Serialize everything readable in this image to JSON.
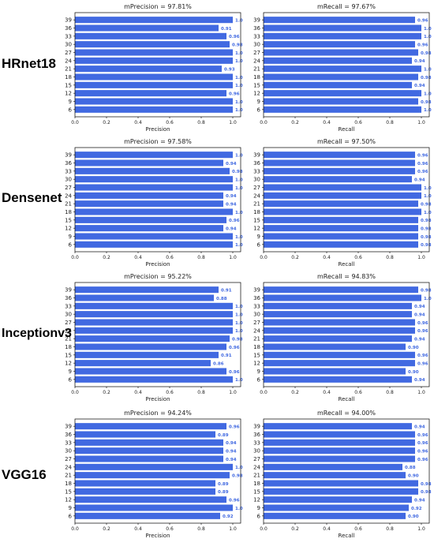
{
  "rows": [
    {
      "model": "HRnet18",
      "charts": [
        {
          "type": "bar",
          "orientation": "horizontal",
          "title": "mPrecision = 97.81%",
          "xlabel": "Precision",
          "xlim": [
            0,
            1.0
          ],
          "x_ticks": [
            "0.0",
            "0.2",
            "0.4",
            "0.6",
            "0.8",
            "1.0"
          ],
          "categories": [
            "39",
            "36",
            "33",
            "30",
            "27",
            "24",
            "21",
            "18",
            "15",
            "12",
            "9",
            "6"
          ],
          "values": [
            1.0,
            0.91,
            0.96,
            0.98,
            1.0,
            1.0,
            0.93,
            1.0,
            1.0,
            0.96,
            1.0,
            1.0
          ],
          "value_labels": [
            "1.0",
            "0.91",
            "0.96",
            "0.98",
            "1.0",
            "1.0",
            "0.93",
            "1.0",
            "1.0",
            "0.96",
            "1.0",
            "1.0"
          ]
        },
        {
          "type": "bar",
          "orientation": "horizontal",
          "title": "mRecall = 97.67%",
          "xlabel": "Recall",
          "xlim": [
            0,
            1.0
          ],
          "x_ticks": [
            "0.0",
            "0.2",
            "0.4",
            "0.6",
            "0.8",
            "1.0"
          ],
          "categories": [
            "39",
            "36",
            "33",
            "30",
            "27",
            "24",
            "21",
            "18",
            "15",
            "12",
            "9",
            "6"
          ],
          "values": [
            0.96,
            1.0,
            1.0,
            0.96,
            0.98,
            0.94,
            1.0,
            0.98,
            0.94,
            1.0,
            0.98,
            1.0
          ],
          "value_labels": [
            "0.96",
            "1.0",
            "1.0",
            "0.96",
            "0.98",
            "0.94",
            "1.0",
            "0.98",
            "0.94",
            "1.0",
            "0.98",
            "1.0"
          ]
        }
      ]
    },
    {
      "model": "Densenet",
      "charts": [
        {
          "type": "bar",
          "orientation": "horizontal",
          "title": "mPrecision = 97.58%",
          "xlabel": "Precision",
          "xlim": [
            0,
            1.0
          ],
          "x_ticks": [
            "0.0",
            "0.2",
            "0.4",
            "0.6",
            "0.8",
            "1.0"
          ],
          "categories": [
            "39",
            "36",
            "33",
            "30",
            "27",
            "24",
            "21",
            "18",
            "15",
            "12",
            "9",
            "6"
          ],
          "values": [
            1.0,
            0.94,
            0.98,
            1.0,
            1.0,
            0.94,
            0.94,
            1.0,
            0.96,
            0.94,
            1.0,
            1.0
          ],
          "value_labels": [
            "1.0",
            "0.94",
            "0.98",
            "1.0",
            "1.0",
            "0.94",
            "0.94",
            "1.0",
            "0.96",
            "0.94",
            "1.0",
            "1.0"
          ]
        },
        {
          "type": "bar",
          "orientation": "horizontal",
          "title": "mRecall = 97.50%",
          "xlabel": "Recall",
          "xlim": [
            0,
            1.0
          ],
          "x_ticks": [
            "0.0",
            "0.2",
            "0.4",
            "0.6",
            "0.8",
            "1.0"
          ],
          "categories": [
            "39",
            "36",
            "33",
            "30",
            "27",
            "24",
            "21",
            "18",
            "15",
            "12",
            "9",
            "6"
          ],
          "values": [
            0.96,
            0.96,
            0.96,
            0.94,
            1.0,
            1.0,
            0.98,
            1.0,
            0.98,
            0.98,
            0.98,
            0.98
          ],
          "value_labels": [
            "0.96",
            "0.96",
            "0.96",
            "0.94",
            "1.0",
            "1.0",
            "0.98",
            "1.0",
            "0.98",
            "0.98",
            "0.98",
            "0.98"
          ]
        }
      ]
    },
    {
      "model": "Inceptionv3",
      "charts": [
        {
          "type": "bar",
          "orientation": "horizontal",
          "title": "mPrecision = 95.22%",
          "xlabel": "Precision",
          "xlim": [
            0,
            1.0
          ],
          "x_ticks": [
            "0.0",
            "0.2",
            "0.4",
            "0.6",
            "0.8",
            "1.0"
          ],
          "categories": [
            "39",
            "36",
            "33",
            "30",
            "27",
            "24",
            "21",
            "18",
            "15",
            "12",
            "9",
            "6"
          ],
          "values": [
            0.91,
            0.88,
            1.0,
            1.0,
            1.0,
            1.0,
            0.98,
            0.96,
            0.91,
            0.86,
            0.96,
            1.0
          ],
          "value_labels": [
            "0.91",
            "0.88",
            "1.0",
            "1.0",
            "1.0",
            "1.0",
            "0.98",
            "0.96",
            "0.91",
            "0.86",
            "0.96",
            "1.0"
          ]
        },
        {
          "type": "bar",
          "orientation": "horizontal",
          "title": "mRecall = 94.83%",
          "xlabel": "Recall",
          "xlim": [
            0,
            1.0
          ],
          "x_ticks": [
            "0.0",
            "0.2",
            "0.4",
            "0.6",
            "0.8",
            "1.0"
          ],
          "categories": [
            "39",
            "36",
            "33",
            "30",
            "27",
            "24",
            "21",
            "18",
            "15",
            "12",
            "9",
            "6"
          ],
          "values": [
            0.98,
            1.0,
            0.94,
            0.94,
            0.96,
            0.96,
            0.94,
            0.9,
            0.96,
            0.96,
            0.9,
            0.94
          ],
          "value_labels": [
            "0.98",
            "1.0",
            "0.94",
            "0.94",
            "0.96",
            "0.96",
            "0.94",
            "0.90",
            "0.96",
            "0.96",
            "0.90",
            "0.94"
          ]
        }
      ]
    },
    {
      "model": "VGG16",
      "charts": [
        {
          "type": "bar",
          "orientation": "horizontal",
          "title": "mPrecision = 94.24%",
          "xlabel": "Precision",
          "xlim": [
            0,
            1.0
          ],
          "x_ticks": [
            "0.0",
            "0.2",
            "0.4",
            "0.6",
            "0.8",
            "1.0"
          ],
          "categories": [
            "39",
            "36",
            "33",
            "30",
            "27",
            "24",
            "21",
            "18",
            "15",
            "12",
            "9",
            "6"
          ],
          "values": [
            0.96,
            0.89,
            0.94,
            0.94,
            0.94,
            1.0,
            0.98,
            0.89,
            0.89,
            0.96,
            1.0,
            0.92
          ],
          "value_labels": [
            "0.96",
            "0.89",
            "0.94",
            "0.94",
            "0.94",
            "1.0",
            "0.98",
            "0.89",
            "0.89",
            "0.96",
            "1.0",
            "0.92"
          ]
        },
        {
          "type": "bar",
          "orientation": "horizontal",
          "title": "mRecall = 94.00%",
          "xlabel": "Recall",
          "xlim": [
            0,
            1.0
          ],
          "x_ticks": [
            "0.0",
            "0.2",
            "0.4",
            "0.6",
            "0.8",
            "1.0"
          ],
          "categories": [
            "39",
            "36",
            "33",
            "30",
            "27",
            "24",
            "21",
            "18",
            "15",
            "12",
            "9",
            "6"
          ],
          "values": [
            0.94,
            0.96,
            0.96,
            0.96,
            0.96,
            0.88,
            0.9,
            0.98,
            0.98,
            0.94,
            0.92,
            0.9
          ],
          "value_labels": [
            "0.94",
            "0.96",
            "0.96",
            "0.96",
            "0.96",
            "0.88",
            "0.90",
            "0.98",
            "0.98",
            "0.94",
            "0.92",
            "0.90"
          ]
        }
      ]
    }
  ],
  "colors": {
    "bar": "#4169e1",
    "value_label": "#4169e1",
    "axis": "#000000",
    "text": "#222222"
  }
}
